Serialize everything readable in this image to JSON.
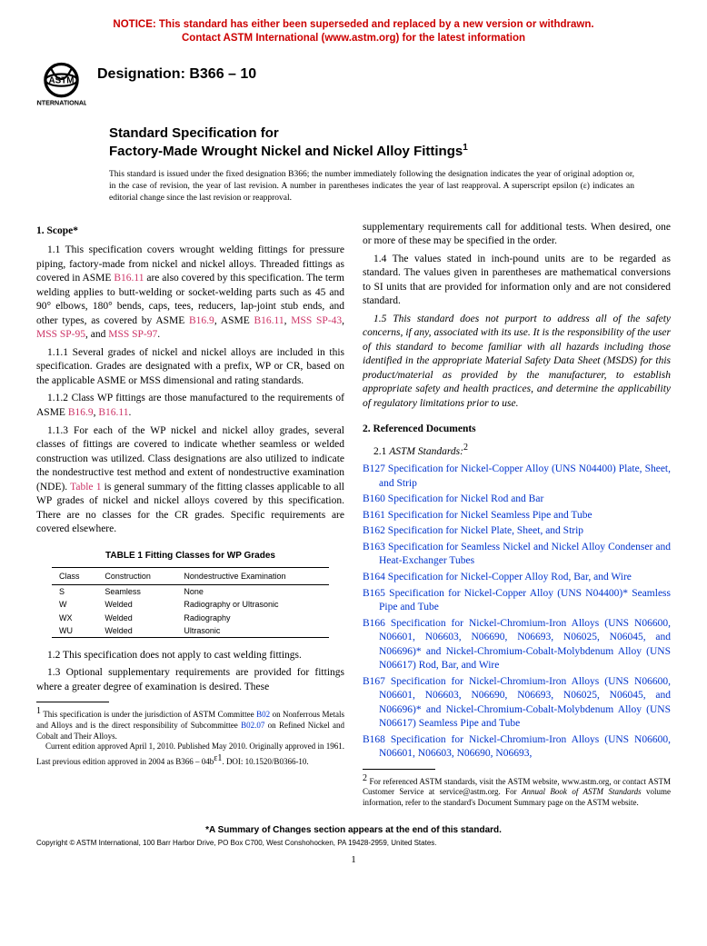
{
  "notice": {
    "line1": "NOTICE: This standard has either been superseded and replaced by a new version or withdrawn.",
    "line2": "Contact ASTM International (www.astm.org) for the latest information"
  },
  "designation": "Designation: B366 – 10",
  "title_prefix": "Standard Specification for",
  "title_main": "Factory-Made Wrought Nickel and Nickel Alloy Fittings",
  "title_sup": "1",
  "fixed_note": "This standard is issued under the fixed designation B366; the number immediately following the designation indicates the year of original adoption or, in the case of revision, the year of last revision. A number in parentheses indicates the year of last reapproval. A superscript epsilon (ε) indicates an editorial change since the last revision or reapproval.",
  "s1_head": "1. Scope*",
  "s1_1_a": "1.1 This specification covers wrought welding fittings for pressure piping, factory-made from nickel and nickel alloys. Threaded fittings as covered in ASME ",
  "s1_1_link1": "B16.11",
  "s1_1_b": " are also covered by this specification. The term welding applies to butt-welding or socket-welding parts such as 45 and 90° elbows, 180° bends, caps, tees, reducers, lap-joint stub ends, and other types, as covered by ASME ",
  "s1_1_link2": "B16.9",
  "s1_1_c": ", ASME ",
  "s1_1_link3": "B16.11",
  "s1_1_d": ", ",
  "s1_1_link4": "MSS SP-43",
  "s1_1_e": ", ",
  "s1_1_link5": "MSS SP-95",
  "s1_1_f": ", and ",
  "s1_1_link6": "MSS SP-97",
  "s1_1_g": ".",
  "s1_1_1": "1.1.1 Several grades of nickel and nickel alloys are included in this specification. Grades are designated with a prefix, WP or CR, based on the applicable ASME or MSS dimensional and rating standards.",
  "s1_1_2_a": "1.1.2 Class WP fittings are those manufactured to the requirements of ASME ",
  "s1_1_2_link1": "B16.9",
  "s1_1_2_b": ", ",
  "s1_1_2_link2": "B16.11",
  "s1_1_2_c": ".",
  "s1_1_3_a": "1.1.3 For each of the WP nickel and nickel alloy grades, several classes of fittings are covered to indicate whether seamless or welded construction was utilized. Class designations are also utilized to indicate the nondestructive test method and extent of nondestructive examination (NDE). ",
  "s1_1_3_link": "Table 1",
  "s1_1_3_b": " is general summary of the fitting classes applicable to all WP grades of nickel and nickel alloys covered by this specification. There are no classes for the CR grades. Specific requirements are covered elsewhere.",
  "table_title": "TABLE 1  Fitting Classes for WP Grades",
  "table": {
    "headers": [
      "Class",
      "Construction",
      "Nondestructive Examination"
    ],
    "rows": [
      [
        "S",
        "Seamless",
        "None"
      ],
      [
        "W",
        "Welded",
        "Radiography or Ultrasonic"
      ],
      [
        "WX",
        "Welded",
        "Radiography"
      ],
      [
        "WU",
        "Welded",
        "Ultrasonic"
      ]
    ]
  },
  "s1_2": "1.2 This specification does not apply to cast welding fittings.",
  "s1_3": "1.3 Optional supplementary requirements are provided for fittings where a greater degree of examination is desired. These",
  "s1_3b": "supplementary requirements call for additional tests. When desired, one or more of these may be specified in the order.",
  "s1_4": "1.4 The values stated in inch-pound units are to be regarded as standard. The values given in parentheses are mathematical conversions to SI units that are provided for information only and are not considered standard.",
  "s1_5": "1.5 This standard does not purport to address all of the safety concerns, if any, associated with its use. It is the responsibility of the user of this standard to become familiar with all hazards including those identified in the appropriate Material Safety Data Sheet (MSDS) for this product/material as provided by the manufacturer, to establish appropriate safety and health practices, and determine the applicability of regulatory limitations prior to use.",
  "s2_head": "2. Referenced Documents",
  "s2_1_a": "2.1 ",
  "s2_1_b": "ASTM Standards:",
  "s2_1_sup": "2",
  "refs": [
    {
      "code": "B127",
      "title": "Specification for Nickel-Copper Alloy (UNS N04400) Plate, Sheet, and Strip"
    },
    {
      "code": "B160",
      "title": "Specification for Nickel Rod and Bar"
    },
    {
      "code": "B161",
      "title": "Specification for Nickel Seamless Pipe and Tube"
    },
    {
      "code": "B162",
      "title": "Specification for Nickel Plate, Sheet, and Strip"
    },
    {
      "code": "B163",
      "title": "Specification for Seamless Nickel and Nickel Alloy Condenser and Heat-Exchanger Tubes"
    },
    {
      "code": "B164",
      "title": "Specification for Nickel-Copper Alloy Rod, Bar, and Wire"
    },
    {
      "code": "B165",
      "title": "Specification for Nickel-Copper Alloy (UNS N04400)* Seamless Pipe and Tube"
    },
    {
      "code": "B166",
      "title": "Specification for Nickel-Chromium-Iron Alloys (UNS N06600, N06601, N06603, N06690, N06693, N06025, N06045, and N06696)* and Nickel-Chromium-Cobalt-Molybdenum Alloy (UNS N06617) Rod, Bar, and Wire"
    },
    {
      "code": "B167",
      "title": "Specification for Nickel-Chromium-Iron Alloys (UNS N06600, N06601, N06603, N06690, N06693, N06025, N06045, and N06696)* and Nickel-Chromium-Cobalt-Molybdenum Alloy (UNS N06617) Seamless Pipe and Tube"
    },
    {
      "code": "B168",
      "title": "Specification for Nickel-Chromium-Iron Alloys (UNS N06600, N06601, N06603, N06690, N06693,"
    }
  ],
  "fn1_a": " This specification is under the jurisdiction of ASTM Committee ",
  "fn1_link1": "B02",
  "fn1_b": " on Nonferrous Metals and Alloys and is the direct responsibility of Subcommittee ",
  "fn1_link2": "B02.07",
  "fn1_c": " on Refined Nickel and Cobalt and Their Alloys.",
  "fn1_d": "Current edition approved April 1, 2010. Published May 2010. Originally approved in 1961. Last previous edition approved in 2004 as B366 – 04b",
  "fn1_eps": "ε1",
  "fn1_e": ". DOI: 10.1520/B0366-10.",
  "fn2_a": " For referenced ASTM standards, visit the ASTM website, www.astm.org, or contact ASTM Customer Service at service@astm.org. For ",
  "fn2_b": "Annual Book of ASTM Standards",
  "fn2_c": " volume information, refer to the standard's Document Summary page on the ASTM website.",
  "summary": "*A Summary of Changes section appears at the end of this standard.",
  "copyright": "Copyright © ASTM International, 100 Barr Harbor Drive, PO Box C700, West Conshohocken, PA 19428-2959, United States.",
  "page_num": "1"
}
